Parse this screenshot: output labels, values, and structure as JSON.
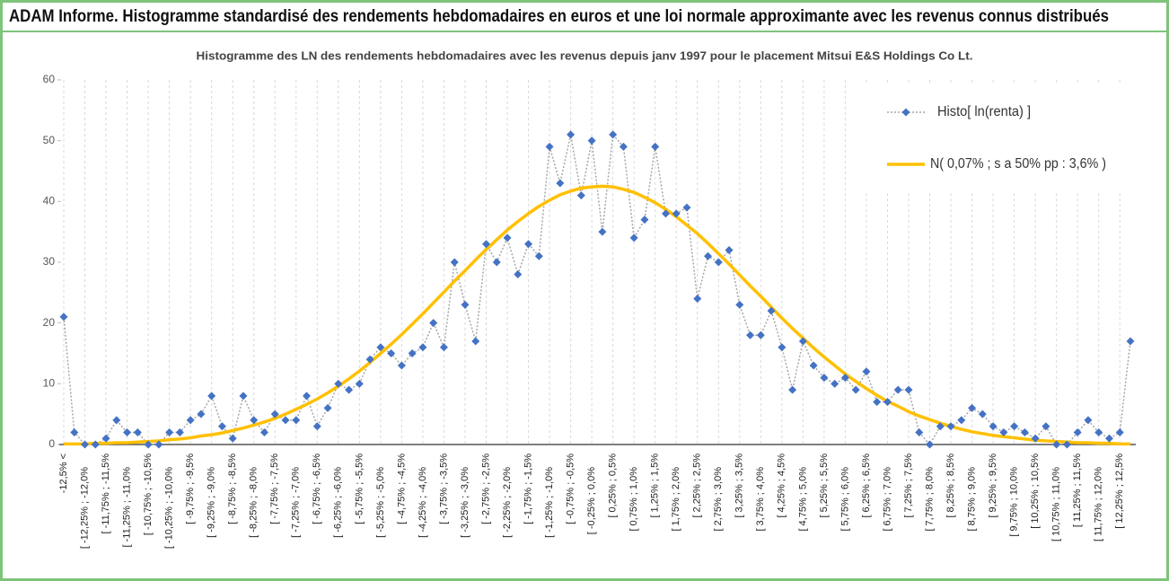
{
  "chart_data": {
    "type": "line",
    "title": "ADAM Informe. Histogramme standardisé des rendements hebdomadaires en euros et une loi normale approximante avec les revenus connus distribués",
    "subtitle": "Histogramme des LN des rendements hebdomadaires avec les revenus depuis janv 1997 pour le placement Mitsui E&S Holdings Co Lt.",
    "categories": [
      "-12,5% <",
      null,
      "[ -12,25% ; -12,0%",
      null,
      "[ -11,75% ; -11,5%",
      null,
      "[ -11,25% ; -11,0%",
      null,
      "[ -10,75% ; -10,5%",
      null,
      "[ -10,25% ; -10,0%",
      null,
      "[ -9,75% ; -9,5%",
      null,
      "[ -9,25% ; -9,0%",
      null,
      "[ -8,75% ; -8,5%",
      null,
      "[ -8,25% ; -8,0%",
      null,
      "[ -7,75% ; -7,5%",
      null,
      "[ -7,25% ; -7,0%",
      null,
      "[ -6,75% ; -6,5%",
      null,
      "[ -6,25% ; -6,0%",
      null,
      "[ -5,75% ; -5,5%",
      null,
      "[ -5,25% ; -5,0%",
      null,
      "[ -4,75% ; -4,5%",
      null,
      "[ -4,25% ; -4,0%",
      null,
      "[ -3,75% ; -3,5%",
      null,
      "[ -3,25% ; -3,0%",
      null,
      "[ -2,75% ; -2,5%",
      null,
      "[ -2,25% ; -2,0%",
      null,
      "[ -1,75% ; -1,5%",
      null,
      "[ -1,25% ; -1,0%",
      null,
      "[ -0,75% ; -0,5%",
      null,
      "[ -0,25% ; 0,0%",
      null,
      "[ 0,25% ; 0,5%",
      null,
      "[ 0,75% ; 1,0%",
      null,
      "[ 1,25% ; 1,5%",
      null,
      "[ 1,75% ; 2,0%",
      null,
      "[ 2,25% ; 2,5%",
      null,
      "[ 2,75% ; 3,0%",
      null,
      "[ 3,25% ; 3,5%",
      null,
      "[ 3,75% ; 4,0%",
      null,
      "[ 4,25% ; 4,5%",
      null,
      "[ 4,75% ; 5,0%",
      null,
      "[ 5,25% ; 5,5%",
      null,
      "[ 5,75% ; 6,0%",
      null,
      "[ 6,25% ; 6,5%",
      null,
      "[ 6,75% ; 7,0%",
      null,
      "[ 7,25% ; 7,5%",
      null,
      "[ 7,75% ; 8,0%",
      null,
      "[ 8,25% ; 8,5%",
      null,
      "[ 8,75% ; 9,0%",
      null,
      "[ 9,25% ; 9,5%",
      null,
      "[ 9,75% ; 10,0%",
      null,
      "[ 10,25% ; 10,5%",
      null,
      "[ 10,75% ; 11,0%",
      null,
      "[ 11,25% ; 11,5%",
      null,
      "[ 11,75% ; 12,0%",
      null,
      "[ 12,25% ; 12,5%",
      null
    ],
    "series": [
      {
        "name": "Histo[ ln(renta) ]",
        "color": "#4472c4",
        "line_color": "#a6a6a6",
        "values": [
          21,
          2,
          0,
          0,
          1,
          4,
          2,
          2,
          0,
          0,
          2,
          2,
          4,
          5,
          8,
          3,
          1,
          8,
          4,
          2,
          5,
          4,
          4,
          8,
          3,
          6,
          10,
          9,
          10,
          14,
          16,
          15,
          13,
          15,
          16,
          20,
          16,
          30,
          23,
          17,
          33,
          30,
          34,
          28,
          33,
          31,
          49,
          43,
          51,
          41,
          50,
          35,
          51,
          49,
          34,
          37,
          49,
          38,
          38,
          39,
          24,
          31,
          30,
          32,
          23,
          18,
          18,
          22,
          16,
          9,
          17,
          13,
          11,
          10,
          11,
          9,
          12,
          7,
          7,
          9,
          9,
          2,
          0,
          3,
          3,
          4,
          6,
          5,
          3,
          2,
          3,
          2,
          1,
          3,
          0,
          0,
          2,
          4,
          2,
          1,
          2,
          17
        ]
      },
      {
        "name": "N( 0,07% ; s a 50% pp : 3,6% )",
        "color": "#ffc000",
        "values": [
          0.1,
          0.1,
          0.1,
          0.2,
          0.2,
          0.3,
          0.3,
          0.4,
          0.5,
          0.6,
          0.8,
          0.9,
          1.1,
          1.4,
          1.6,
          1.9,
          2.3,
          2.7,
          3.2,
          3.7,
          4.3,
          5.0,
          5.8,
          6.6,
          7.5,
          8.5,
          9.6,
          10.8,
          12.1,
          13.5,
          15.0,
          16.5,
          18.1,
          19.8,
          21.5,
          23.3,
          25.1,
          26.9,
          28.6,
          30.4,
          32.1,
          33.7,
          35.3,
          36.7,
          38.0,
          39.2,
          40.2,
          41.1,
          41.7,
          42.2,
          42.4,
          42.5,
          42.4,
          42.0,
          41.5,
          40.7,
          39.8,
          38.7,
          37.5,
          36.1,
          34.7,
          33.1,
          31.4,
          29.7,
          27.9,
          26.1,
          24.4,
          22.6,
          20.8,
          19.1,
          17.5,
          15.9,
          14.4,
          13.0,
          11.6,
          10.4,
          9.2,
          8.1,
          7.1,
          6.3,
          5.4,
          4.7,
          4.1,
          3.5,
          3.0,
          2.5,
          2.1,
          1.8,
          1.5,
          1.3,
          1.1,
          0.9,
          0.7,
          0.6,
          0.5,
          0.4,
          0.3,
          0.3,
          0.2,
          0.2,
          0.1,
          0.1
        ]
      }
    ],
    "ylim": [
      0,
      60
    ],
    "yticks": [
      0,
      10,
      20,
      30,
      40,
      50,
      60
    ],
    "grid": false,
    "legend": "upper right"
  }
}
